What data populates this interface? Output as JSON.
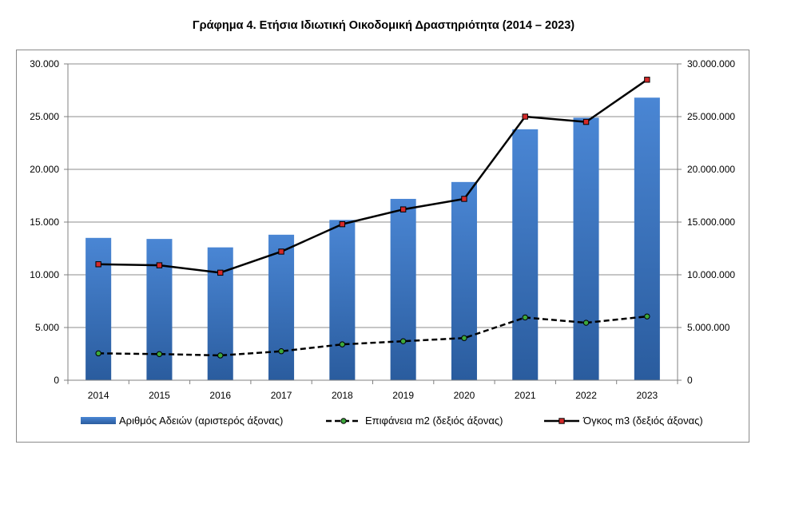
{
  "chart_data": {
    "type": "bar",
    "title": "Γράφημα 4. Ετήσια Ιδιωτική Οικοδομική Δραστηριότητα (2014 – 2023)",
    "categories": [
      "2014",
      "2015",
      "2016",
      "2017",
      "2018",
      "2019",
      "2020",
      "2021",
      "2022",
      "2023"
    ],
    "left_axis": {
      "ylim": [
        0,
        30000
      ],
      "ticks": [
        0,
        5000,
        10000,
        15000,
        20000,
        25000,
        30000
      ],
      "tick_labels": [
        "0",
        "5.000",
        "10.000",
        "15.000",
        "20.000",
        "25.000",
        "30.000"
      ]
    },
    "right_axis": {
      "ylim": [
        0,
        30000000
      ],
      "ticks": [
        0,
        5000000,
        10000000,
        15000000,
        20000000,
        25000000,
        30000000
      ],
      "tick_labels": [
        "0",
        "5.000.000",
        "10.000.000",
        "15.000.000",
        "20.000.000",
        "25.000.000",
        "30.000.000"
      ]
    },
    "series": [
      {
        "name": "Αριθμός Αδειών (αριστερός άξονας)",
        "type": "bar",
        "axis": "left",
        "color": "#3f7ac6",
        "values": [
          13500,
          13400,
          12600,
          13800,
          15200,
          17200,
          18800,
          23800,
          24900,
          26800
        ]
      },
      {
        "name": "Επιφάνεια m2 (δεξιός άξονας)",
        "type": "line",
        "style": "dashed",
        "marker": "circle",
        "marker_color": "#3ca83c",
        "axis": "right",
        "color": "#000000",
        "values": [
          2550000,
          2480000,
          2350000,
          2750000,
          3400000,
          3700000,
          4000000,
          5950000,
          5450000,
          6050000
        ]
      },
      {
        "name": "Όγκος m3 (δεξιός άξονας)",
        "type": "line",
        "style": "solid",
        "marker": "square",
        "marker_color": "#d42a2a",
        "axis": "right",
        "color": "#000000",
        "values": [
          11000000,
          10900000,
          10200000,
          12200000,
          14800000,
          16200000,
          17200000,
          25000000,
          24500000,
          28500000
        ]
      }
    ],
    "legend_position": "bottom",
    "grid": "horizontal"
  }
}
